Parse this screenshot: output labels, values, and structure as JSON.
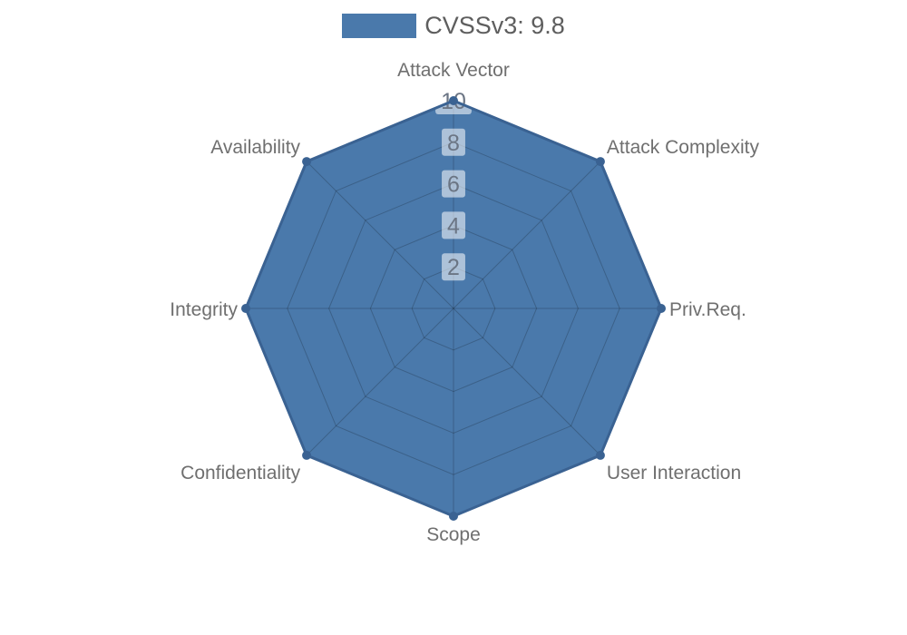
{
  "legend": {
    "label": "CVSSv3: 9.8"
  },
  "chart_data": {
    "type": "radar",
    "title": "CVSSv3: 9.8",
    "categories": [
      "Attack Vector",
      "Attack Complexity",
      "Priv.Req.",
      "User Interaction",
      "Scope",
      "Confidentiality",
      "Integrity",
      "Availability"
    ],
    "series": [
      {
        "name": "CVSSv3: 9.8",
        "values": [
          10,
          10,
          10,
          10,
          10,
          10,
          10,
          10
        ]
      }
    ],
    "radial_ticks": [
      2,
      4,
      6,
      8,
      10
    ],
    "axis_range": [
      0,
      10
    ],
    "grid": true,
    "grid_shape": "polygon",
    "legend_position": "top",
    "colors": {
      "series_fill": "#4a79ab",
      "series_stroke": "#3a6292",
      "grid_line": "rgba(0,0,0,0.2)",
      "tick_label_bg": "rgba(255,255,255,0.55)",
      "tick_label_text": "#6b7584",
      "axis_label_text": "#6f6f6f",
      "legend_text": "#5e5e5e",
      "background": "#ffffff"
    }
  }
}
